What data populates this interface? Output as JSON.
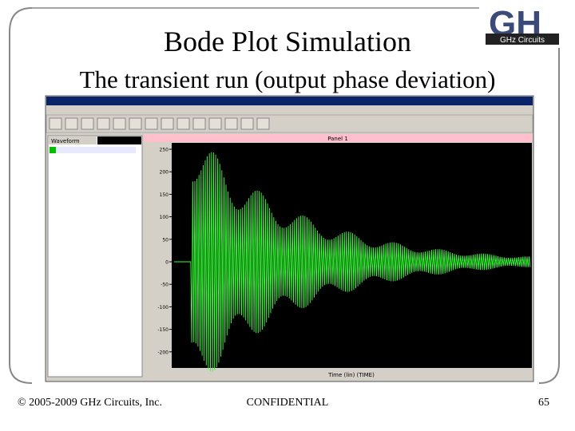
{
  "slide": {
    "title": "Bode Plot Simulation",
    "subtitle": "The transient run (output phase deviation)",
    "logo": "GHz Circuits"
  },
  "screenshot": {
    "panel_title": "Panel 1",
    "list_header": "Waveform",
    "x_axis_label": "Time (lin) (TIME)",
    "plot": {
      "yticks": [
        250,
        200,
        150,
        100,
        50,
        0,
        -50,
        -100,
        -150,
        -200
      ]
    }
  },
  "footer": {
    "copyright": "© 2005-2009 GHz Circuits, Inc.",
    "confidential": "CONFIDENTIAL",
    "page": "65"
  }
}
